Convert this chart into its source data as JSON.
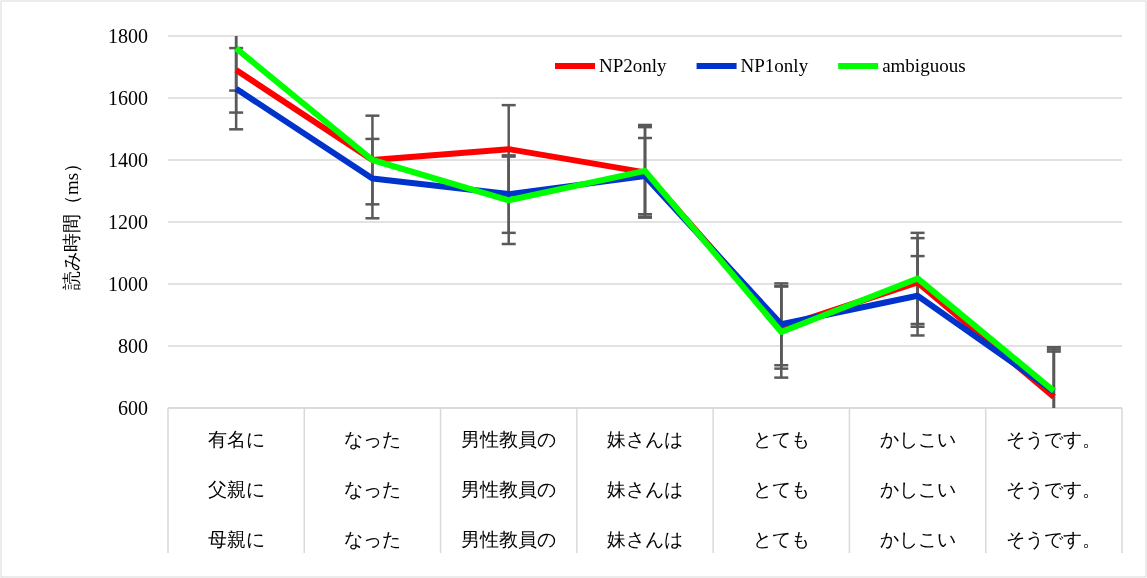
{
  "chart_data": {
    "type": "line",
    "ylabel": "読み時間（ms）",
    "categories": [
      "有名に",
      "なった",
      "男性教員の",
      "妹さんは",
      "とても",
      "かしこい",
      "そうです。"
    ],
    "annotations": [
      "父親に",
      "なった",
      "男性教員の",
      "妹さんは",
      "とても",
      "かしこい",
      "そうです。",
      "母親に",
      "なった",
      "男性教員の",
      "妹さんは",
      "とても",
      "かしこい",
      "そうです。"
    ],
    "series": [
      {
        "name": "NP2only",
        "color": "#ff0000",
        "values": [
          1690,
          1400,
          1435,
          1360,
          860,
          1005,
          636
        ],
        "errors": [
          [
            1553,
            1800
          ],
          143,
          142,
          146,
          133,
          143,
          [
            600,
            782
          ]
        ]
      },
      {
        "name": "NP1only",
        "color": "#0033cc",
        "values": [
          1630,
          1340,
          1290,
          1348,
          870,
          962,
          653
        ],
        "errors": [
          131,
          128,
          125,
          123,
          132,
          128,
          [
            600,
            789
          ]
        ]
      },
      {
        "name": "ambiguous",
        "color": "#00ff00",
        "values": [
          1760,
          1400,
          1270,
          1365,
          845,
          1018,
          655
        ],
        "errors": [
          [
            1624,
            1800
          ],
          null,
          141,
          148,
          147,
          147,
          [
            600,
            796
          ]
        ]
      }
    ],
    "ylim": [
      600,
      1800
    ],
    "yticks": [
      600,
      800,
      1000,
      1200,
      1400,
      1600,
      1800
    ],
    "grid": "y",
    "legend": "top right",
    "line_style": "solid",
    "marker": "none"
  }
}
